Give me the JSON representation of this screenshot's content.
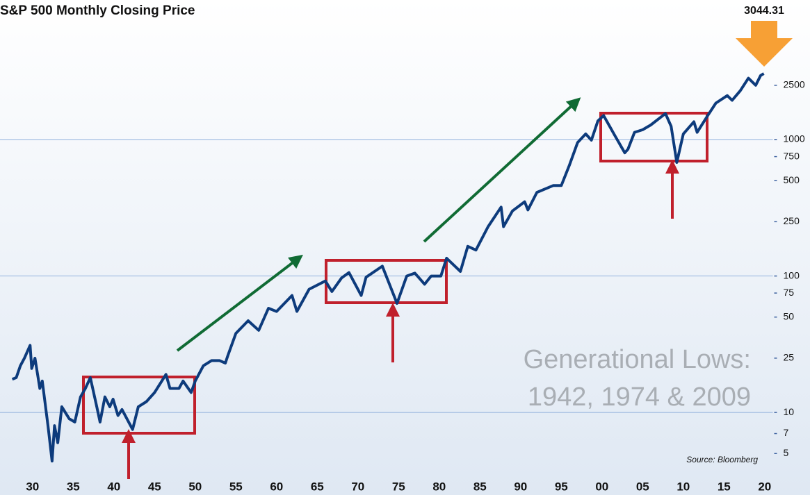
{
  "chart_data": {
    "type": "line",
    "title": "S&P 500 Monthly Closing Price",
    "yscale": "log",
    "ylim": [
      3.25,
      9600
    ],
    "xlim": [
      1926,
      2021
    ],
    "yticks": [
      5,
      7,
      10,
      25,
      50,
      75,
      100,
      250,
      500,
      750,
      1000,
      2500
    ],
    "grid_values": [
      10,
      100,
      1000
    ],
    "xticks": [
      {
        "value": 1930,
        "label": "30"
      },
      {
        "value": 1935,
        "label": "35"
      },
      {
        "value": 1940,
        "label": "40"
      },
      {
        "value": 1945,
        "label": "45"
      },
      {
        "value": 1950,
        "label": "50"
      },
      {
        "value": 1955,
        "label": "55"
      },
      {
        "value": 1960,
        "label": "60"
      },
      {
        "value": 1965,
        "label": "65"
      },
      {
        "value": 1970,
        "label": "70"
      },
      {
        "value": 1975,
        "label": "75"
      },
      {
        "value": 1980,
        "label": "80"
      },
      {
        "value": 1985,
        "label": "85"
      },
      {
        "value": 1990,
        "label": "90"
      },
      {
        "value": 1995,
        "label": "95"
      },
      {
        "value": 2000,
        "label": "00"
      },
      {
        "value": 2005,
        "label": "05"
      },
      {
        "value": 2010,
        "label": "10"
      },
      {
        "value": 2015,
        "label": "15"
      },
      {
        "value": 2020,
        "label": "20"
      }
    ],
    "color": "#0d3b7c",
    "x": [
      1927.5,
      1928,
      1928.5,
      1929,
      1929.7,
      1929.9,
      1930.3,
      1930.9,
      1931.2,
      1931.9,
      1932.4,
      1932.7,
      1933.1,
      1933.6,
      1934.5,
      1935.2,
      1935.9,
      1936.5,
      1937.1,
      1937.9,
      1938.3,
      1938.9,
      1939.5,
      1939.9,
      1940.5,
      1941,
      1942.3,
      1943,
      1944,
      1945,
      1946.4,
      1946.9,
      1948,
      1948.5,
      1949.5,
      1950,
      1951,
      1952,
      1953,
      1953.7,
      1954,
      1955,
      1956.5,
      1957.8,
      1959,
      1960,
      1961.9,
      1962.5,
      1964,
      1966,
      1966.8,
      1968,
      1968.9,
      1970.4,
      1971,
      1973,
      1974.8,
      1976,
      1977,
      1978.2,
      1979,
      1980.2,
      1980.9,
      1982.6,
      1983.5,
      1984.5,
      1986,
      1987.6,
      1987.9,
      1989,
      1990.5,
      1990.9,
      1992,
      1994,
      1995,
      1996,
      1997,
      1998,
      1998.7,
      1999.5,
      2000.2,
      2001.7,
      2002.8,
      2003.2,
      2004,
      2005,
      2006,
      2007.8,
      2008.5,
      2009.2,
      2010,
      2011.3,
      2011.7,
      2013,
      2014,
      2015.4,
      2016,
      2017,
      2018,
      2018.9,
      2019.5,
      2019.9
    ],
    "values": [
      17.5,
      18,
      22,
      25,
      31,
      21,
      25,
      15,
      17,
      8,
      4.4,
      8,
      6,
      11,
      9,
      8.5,
      13,
      15,
      18,
      11,
      8.5,
      13,
      11,
      12.5,
      9.5,
      10.5,
      7.5,
      11,
      12,
      14,
      19,
      15,
      15,
      17,
      14,
      17,
      22,
      24,
      24,
      23,
      26,
      38,
      47,
      40,
      58,
      55,
      72,
      55,
      80,
      92,
      77,
      97,
      106,
      72,
      98,
      118,
      63,
      100,
      105,
      87,
      100,
      100,
      135,
      108,
      165,
      155,
      230,
      320,
      230,
      300,
      350,
      305,
      410,
      460,
      460,
      650,
      950,
      1100,
      990,
      1370,
      1500,
      1040,
      800,
      850,
      1130,
      1180,
      1280,
      1550,
      1250,
      680,
      1100,
      1350,
      1130,
      1500,
      1850,
      2100,
      1940,
      2280,
      2820,
      2500,
      2950,
      3044.31
    ],
    "annotations": {
      "last_value": "3044.31",
      "lows_line1": "Generational Lows:",
      "lows_line2": "1942, 1974 & 2009",
      "source": "Source: Bloomberg"
    }
  }
}
